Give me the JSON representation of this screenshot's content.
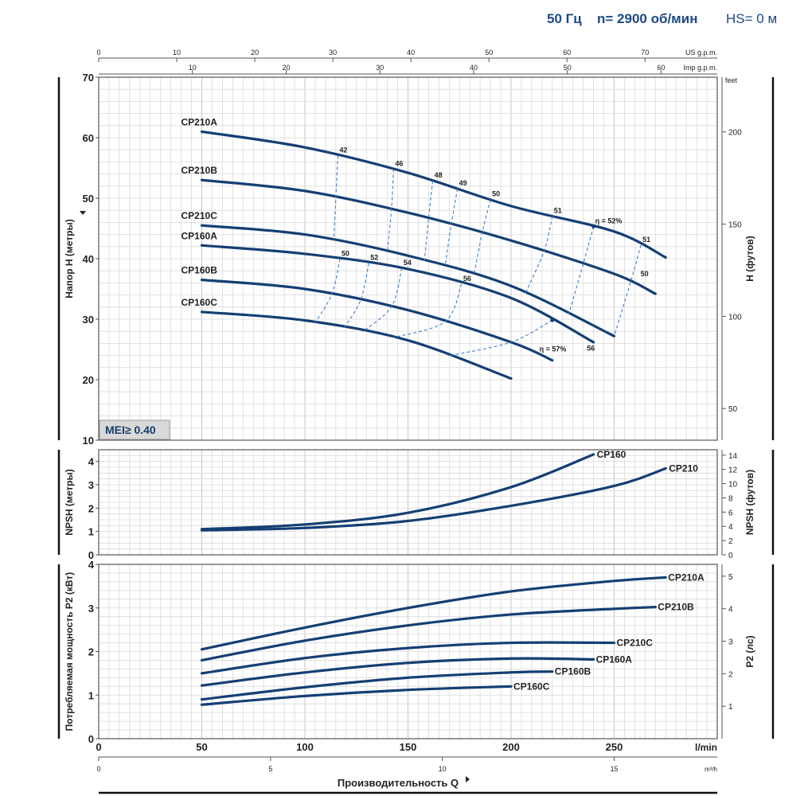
{
  "header": {
    "frequency": "50 Гц",
    "speed": "n= 2900 об/мин",
    "hs": "HS= 0 м"
  },
  "chart_data": {
    "type": "line",
    "panels": {
      "head": {
        "ylabel_left": "Напор H (метры)",
        "ylabel_right": "H (футов)",
        "ylabel_right_unit": "feet",
        "ylim": [
          10,
          70
        ],
        "yticks": [
          10,
          20,
          30,
          40,
          50,
          60,
          70
        ],
        "right_ticks": [
          50,
          100,
          150,
          200
        ],
        "badge": "MEI≥ 0.40",
        "series": [
          {
            "name": "CP210A",
            "x": [
              50,
              100,
              150,
              200,
              250,
              275
            ],
            "y": [
              61,
              58.4,
              54.2,
              48.7,
              44.5,
              40.2
            ]
          },
          {
            "name": "CP210B",
            "x": [
              50,
              100,
              150,
              200,
              250,
              270
            ],
            "y": [
              53,
              51.2,
              47.6,
              43.0,
              37.5,
              34.2
            ]
          },
          {
            "name": "CP210C",
            "x": [
              50,
              100,
              150,
              200,
              250
            ],
            "y": [
              45.5,
              44.0,
              40.5,
              35.5,
              27.2
            ]
          },
          {
            "name": "CP160A",
            "x": [
              50,
              100,
              150,
              200,
              240
            ],
            "y": [
              42.2,
              40.8,
              38.3,
              33.5,
              26.2
            ]
          },
          {
            "name": "CP160B",
            "x": [
              50,
              100,
              150,
              200,
              220
            ],
            "y": [
              36.5,
              35.0,
              31.5,
              26.2,
              23.2
            ]
          },
          {
            "name": "CP160C",
            "x": [
              50,
              100,
              150,
              200
            ],
            "y": [
              31.2,
              29.8,
              26.5,
              20.2
            ]
          }
        ],
        "efficiency_labels_210": [
          "42",
          "46",
          "48",
          "49",
          "50",
          "51",
          "η = 52%",
          "51",
          "50"
        ],
        "efficiency_labels_160": [
          "50",
          "52",
          "54",
          "56",
          "η = 57%",
          "56"
        ]
      },
      "npsh": {
        "ylabel_left": "NPSH (метры)",
        "ylabel_right": "NPSH (футов)",
        "ylim": [
          0,
          4.5
        ],
        "yticks": [
          0,
          1,
          2,
          3,
          4
        ],
        "right_ticks": [
          0,
          2,
          4,
          6,
          8,
          10,
          12,
          14
        ],
        "series": [
          {
            "name": "CP160",
            "x": [
              50,
              100,
              150,
              200,
              240
            ],
            "y": [
              1.1,
              1.3,
              1.8,
              2.9,
              4.3
            ]
          },
          {
            "name": "CP210",
            "x": [
              50,
              100,
              150,
              200,
              250,
              275
            ],
            "y": [
              1.05,
              1.15,
              1.45,
              2.1,
              2.95,
              3.7
            ]
          }
        ]
      },
      "power": {
        "ylabel_left": "Потребляемая мощность P2 (кВт)",
        "ylabel_right": "P2 (лс)",
        "ylim": [
          0,
          4
        ],
        "yticks": [
          0,
          1,
          2,
          3,
          4
        ],
        "right_ticks": [
          1,
          2,
          3,
          4,
          5
        ],
        "series": [
          {
            "name": "CP210A",
            "x": [
              50,
              100,
              150,
              200,
              250,
              275
            ],
            "y": [
              2.05,
              2.55,
              3.0,
              3.38,
              3.62,
              3.7
            ]
          },
          {
            "name": "CP210B",
            "x": [
              50,
              100,
              150,
              200,
              250,
              270
            ],
            "y": [
              1.8,
              2.25,
              2.6,
              2.85,
              2.98,
              3.02
            ]
          },
          {
            "name": "CP210C",
            "x": [
              50,
              100,
              150,
              200,
              250
            ],
            "y": [
              1.5,
              1.85,
              2.08,
              2.2,
              2.2
            ]
          },
          {
            "name": "CP160A",
            "x": [
              50,
              100,
              150,
              200,
              240
            ],
            "y": [
              1.22,
              1.52,
              1.74,
              1.84,
              1.82
            ]
          },
          {
            "name": "CP160B",
            "x": [
              50,
              100,
              150,
              200,
              220
            ],
            "y": [
              0.9,
              1.18,
              1.4,
              1.52,
              1.54
            ]
          },
          {
            "name": "CP160C",
            "x": [
              50,
              100,
              150,
              200
            ],
            "y": [
              0.78,
              0.98,
              1.12,
              1.2
            ]
          }
        ]
      }
    },
    "x_axes": {
      "lmin": {
        "unit": "l/min",
        "xlim": [
          0,
          300
        ],
        "ticks": [
          0,
          50,
          100,
          150,
          200,
          250
        ]
      },
      "m3h": {
        "unit": "m³/h",
        "ticks": [
          0,
          5,
          10,
          15
        ]
      },
      "usgpm": {
        "unit": "US g.p.m.",
        "ticks": [
          0,
          10,
          20,
          30,
          40,
          50,
          60,
          70
        ]
      },
      "impgpm": {
        "unit": "Imp g.p.m.",
        "ticks": [
          10,
          20,
          30,
          40,
          50,
          60
        ]
      }
    },
    "xlabel": "Производительность Q",
    "grid": true,
    "colors": {
      "curve": "#153f73",
      "efficiency": "#3f7fc8",
      "header": "#1b4a86"
    }
  }
}
